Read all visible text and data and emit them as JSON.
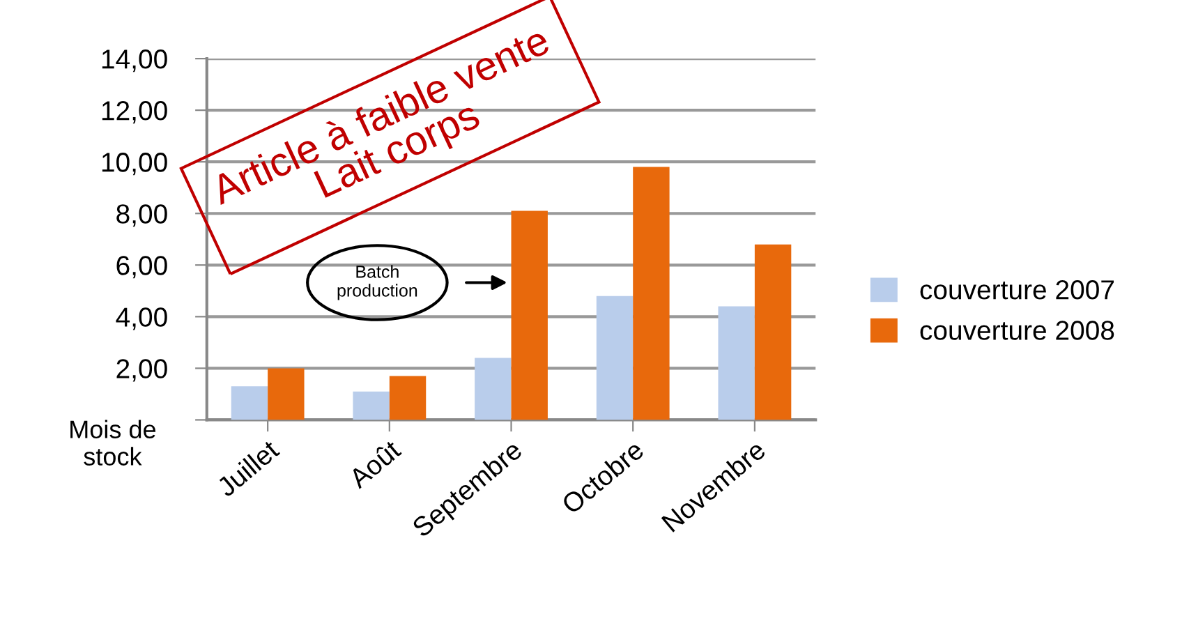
{
  "chart_data": {
    "type": "bar",
    "categories": [
      "Juillet",
      "Août",
      "Septembre",
      "Octobre",
      "Novembre"
    ],
    "series": [
      {
        "name": "couverture 2007",
        "color": "#b9cdeb",
        "values": [
          1.3,
          1.1,
          2.4,
          4.8,
          4.4
        ]
      },
      {
        "name": "couverture 2008",
        "color": "#e8690c",
        "values": [
          2.0,
          1.7,
          8.1,
          9.8,
          6.8
        ]
      }
    ],
    "ylabel": "Mois de stock",
    "ylim": [
      0,
      14
    ],
    "yticks": [
      {
        "value": 0,
        "label": null
      },
      {
        "value": 2,
        "label": "2,00"
      },
      {
        "value": 4,
        "label": "4,00"
      },
      {
        "value": 6,
        "label": "6,00"
      },
      {
        "value": 8,
        "label": "8,00"
      },
      {
        "value": 10,
        "label": "10,00"
      },
      {
        "value": 12,
        "label": "12,00"
      },
      {
        "value": 14,
        "label": "14,00"
      }
    ],
    "grid": "y",
    "legend": "right",
    "annotations": [
      "Article à faible vente\nLait corps",
      "Batch production"
    ]
  }
}
